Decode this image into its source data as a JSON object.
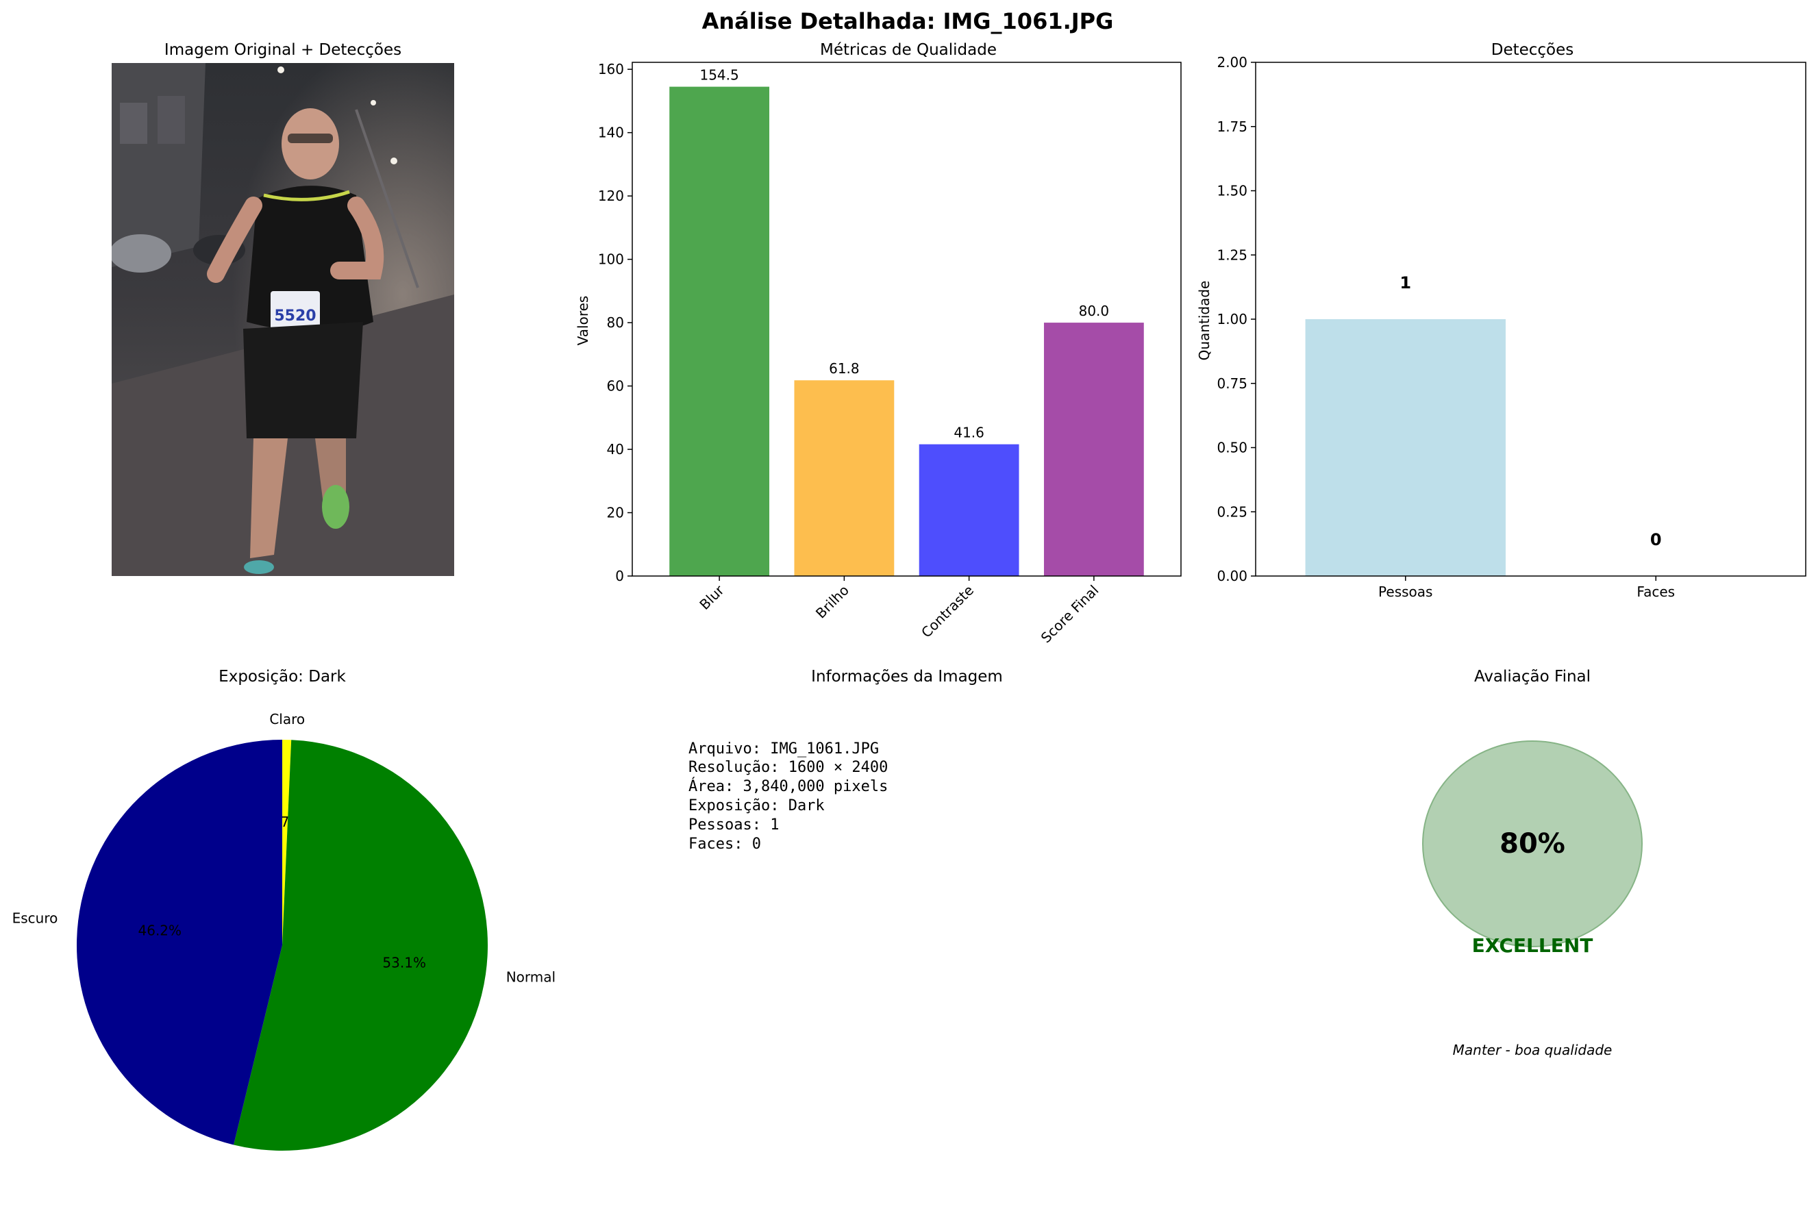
{
  "suptitle": "Análise Detalhada: IMG_1061.JPG",
  "image_panel": {
    "title": "Imagem Original + Detecções"
  },
  "chart_data": [
    {
      "type": "bar",
      "title": "Métricas de Qualidade",
      "xlabel": "",
      "ylabel": "Valores",
      "categories": [
        "Blur",
        "Brilho",
        "Contraste",
        "Score Final"
      ],
      "values": [
        154.5,
        61.8,
        41.6,
        80.0
      ],
      "value_labels": [
        "154.5",
        "61.8",
        "41.6",
        "80.0"
      ],
      "colors": [
        "#4ea64e",
        "#fdbe4e",
        "#4e4efd",
        "#a54ca8"
      ],
      "ylim": [
        0,
        162.2
      ],
      "yticks": [
        0,
        20,
        40,
        60,
        80,
        100,
        120,
        140,
        160
      ],
      "ytick_labels": [
        "0",
        "20",
        "40",
        "60",
        "80",
        "100",
        "120",
        "140",
        "160"
      ],
      "grid": false
    },
    {
      "type": "bar",
      "title": "Detecções",
      "xlabel": "",
      "ylabel": "Quantidade",
      "categories": [
        "Pessoas",
        "Faces"
      ],
      "values": [
        1,
        0
      ],
      "value_labels": [
        "1",
        "0"
      ],
      "colors": [
        "#bedfea",
        "#f08080"
      ],
      "ylim": [
        0,
        2.0
      ],
      "yticks": [
        0,
        0.25,
        0.5,
        0.75,
        1.0,
        1.25,
        1.5,
        1.75,
        2.0
      ],
      "ytick_labels": [
        "0.00",
        "0.25",
        "0.50",
        "0.75",
        "1.00",
        "1.25",
        "1.50",
        "1.75",
        "2.00"
      ],
      "grid": false
    },
    {
      "type": "pie",
      "title": "Exposição: Dark",
      "labels": [
        "Claro",
        "Normal",
        "Escuro"
      ],
      "values": [
        0.7,
        53.1,
        46.2
      ],
      "pct_labels": [
        "0.7%",
        "53.1%",
        "46.2%"
      ],
      "colors": [
        "#ffff00",
        "#008000",
        "#00008b"
      ],
      "start_angle": 90,
      "direction": "clockwise"
    }
  ],
  "info_panel": {
    "title": "Informações da Imagem",
    "lines": [
      "Arquivo: IMG_1061.JPG",
      "Resolução: 1600 × 2400",
      "Área: 3,840,000 pixels",
      "Exposição: Dark",
      "Pessoas: 1",
      "Faces: 0"
    ]
  },
  "evaluation_panel": {
    "title": "Avaliação Final",
    "score": "80%",
    "rating": "EXCELLENT",
    "recommendation": "Manter - boa qualidade",
    "circle_color": "#b2d0b2",
    "rating_color": "#006400"
  }
}
